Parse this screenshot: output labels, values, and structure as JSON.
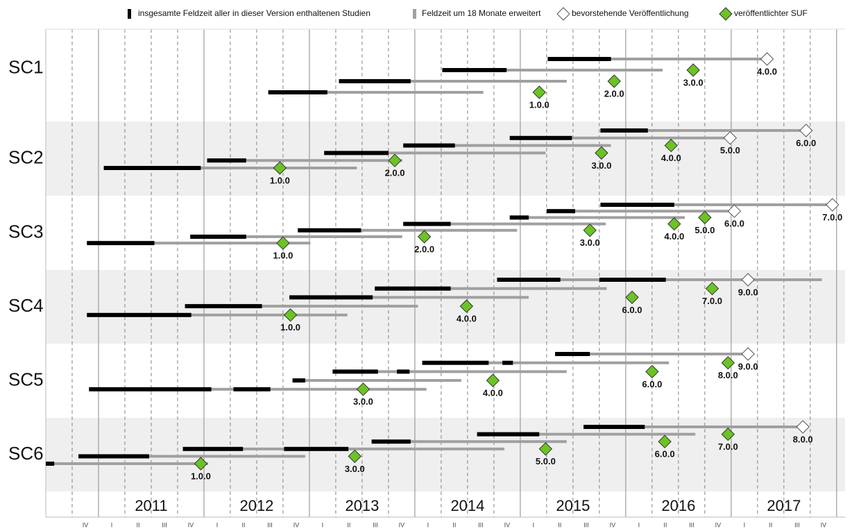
{
  "chart_data": {
    "type": "timeline",
    "legend": {
      "field": "insgesamte Feldzeit aller in dieser Version enthaltenen Studien",
      "extended": "Feldzeit um 18 Monate erweitert",
      "upcoming": "bevorstehende Veröffentlichung",
      "published": "veröffentlichter SUF"
    },
    "colors": {
      "field": "#000000",
      "extended": "#a0a0a0",
      "upcoming": "#ffffff",
      "published": "#6cc324",
      "band": "#efefef"
    },
    "xlim": [
      2010.5,
      2018.08
    ],
    "xticks": [
      2011,
      2012,
      2013,
      2014,
      2015,
      2016,
      2017,
      2018
    ],
    "minor_xticks": [
      2010.75,
      2011.25,
      2011.5,
      2011.75,
      2012.25,
      2012.5,
      2012.75,
      2013.25,
      2013.5,
      2013.75,
      2014.25,
      2014.5,
      2014.75,
      2015.25,
      2015.5,
      2015.75,
      2016.25,
      2016.5,
      2016.75,
      2017.25,
      2017.5,
      2017.75
    ],
    "year_labels": [
      "2011",
      "2012",
      "2013",
      "2014",
      "2015",
      "2016",
      "2017"
    ],
    "quarter_labels": [
      "IV",
      "I",
      "II",
      "III",
      "IV",
      "I",
      "II",
      "III",
      "IV",
      "I",
      "II",
      "III",
      "IV",
      "I",
      "II",
      "III",
      "IV",
      "I",
      "II",
      "III",
      "IV",
      "I",
      "II",
      "III",
      "IV",
      "I",
      "II",
      "III",
      "IV"
    ],
    "groups": [
      {
        "name": "SC1",
        "items": [
          {
            "version": "4.0.0",
            "fieldwork": [
              [
                2015.26,
                2015.86
              ]
            ],
            "extended_end": 2017.34,
            "release": 2017.34,
            "status": "upcoming"
          },
          {
            "version": "3.0.0",
            "fieldwork": [
              [
                2014.26,
                2014.87
              ]
            ],
            "extended_end": 2016.35,
            "release": 2016.64,
            "status": "published"
          },
          {
            "version": "2.0.0",
            "fieldwork": [
              [
                2013.28,
                2013.96
              ]
            ],
            "extended_end": 2015.44,
            "release": 2015.89,
            "status": "published"
          },
          {
            "version": "1.0.0",
            "fieldwork": [
              [
                2012.61,
                2013.17
              ]
            ],
            "extended_end": 2014.65,
            "release": 2015.18,
            "status": "published"
          }
        ]
      },
      {
        "name": "SC2",
        "items": [
          {
            "version": "6.0.0",
            "fieldwork": [
              [
                2015.76,
                2016.21
              ]
            ],
            "extended_end": 2017.71,
            "release": 2017.71,
            "status": "upcoming"
          },
          {
            "version": "5.0.0",
            "fieldwork": [
              [
                2014.9,
                2015.49
              ]
            ],
            "extended_end": 2016.99,
            "release": 2016.99,
            "status": "upcoming"
          },
          {
            "version": "4.0.0",
            "fieldwork": [
              [
                2013.89,
                2014.38
              ]
            ],
            "extended_end": 2015.86,
            "release": 2016.43,
            "status": "published"
          },
          {
            "version": "3.0.0",
            "fieldwork": [
              [
                2013.14,
                2013.75
              ]
            ],
            "extended_end": 2015.24,
            "release": 2015.77,
            "status": "published"
          },
          {
            "version": "2.0.0",
            "fieldwork": [
              [
                2012.03,
                2012.4
              ]
            ],
            "extended_end": 2013.88,
            "release": 2013.81,
            "status": "published"
          },
          {
            "version": "1.0.0",
            "fieldwork": [
              [
                2011.05,
                2011.97
              ]
            ],
            "extended_end": 2013.45,
            "release": 2012.72,
            "status": "published"
          }
        ]
      },
      {
        "name": "SC3",
        "items": [
          {
            "version": "7.0.0",
            "fieldwork": [
              [
                2015.76,
                2016.46
              ]
            ],
            "extended_end": 2017.96,
            "release": 2017.96,
            "status": "upcoming"
          },
          {
            "version": "6.0.0",
            "fieldwork": [
              [
                2015.25,
                2015.52
              ]
            ],
            "extended_end": 2017.03,
            "release": 2017.03,
            "status": "upcoming"
          },
          {
            "version": "5.0.0",
            "fieldwork": [
              [
                2014.9,
                2015.08
              ]
            ],
            "extended_end": 2016.56,
            "release": 2016.75,
            "status": "published"
          },
          {
            "version": "4.0.0",
            "fieldwork": [
              [
                2013.89,
                2014.34
              ]
            ],
            "extended_end": 2015.81,
            "release": 2016.46,
            "status": "published"
          },
          {
            "version": "3.0.0",
            "fieldwork": [
              [
                2012.89,
                2013.49
              ]
            ],
            "extended_end": 2014.97,
            "release": 2015.66,
            "status": "published"
          },
          {
            "version": "2.0.0",
            "fieldwork": [
              [
                2011.87,
                2012.4
              ]
            ],
            "extended_end": 2013.88,
            "release": 2014.09,
            "status": "published"
          },
          {
            "version": "1.0.0",
            "fieldwork": [
              [
                2010.89,
                2011.53
              ]
            ],
            "extended_end": 2013.01,
            "release": 2012.75,
            "status": "published"
          }
        ]
      },
      {
        "name": "SC4",
        "items": [
          {
            "version": "9.0.0",
            "fieldwork": [
              [
                2014.78,
                2015.38
              ],
              [
                2015.75,
                2016.38
              ]
            ],
            "extended_end": 2017.86,
            "release": 2017.16,
            "status": "upcoming"
          },
          {
            "version": "7.0.0",
            "fieldwork": [
              [
                2013.62,
                2014.34
              ]
            ],
            "extended_end": 2015.82,
            "release": 2016.82,
            "status": "published"
          },
          {
            "version": "6.0.0",
            "fieldwork": [
              [
                2012.81,
                2013.6
              ]
            ],
            "extended_end": 2015.08,
            "release": 2016.06,
            "status": "published"
          },
          {
            "version": "4.0.0",
            "fieldwork": [
              [
                2011.82,
                2012.55
              ]
            ],
            "extended_end": 2014.03,
            "release": 2014.49,
            "status": "published"
          },
          {
            "version": "1.0.0",
            "fieldwork": [
              [
                2010.89,
                2011.88
              ]
            ],
            "extended_end": 2013.36,
            "release": 2012.82,
            "status": "published"
          }
        ]
      },
      {
        "name": "SC5",
        "items": [
          {
            "version": "9.0.0",
            "fieldwork": [
              [
                2015.33,
                2015.66
              ]
            ],
            "extended_end": 2017.16,
            "release": 2017.16,
            "status": "upcoming"
          },
          {
            "version": "8.0.0",
            "fieldwork": [
              [
                2014.07,
                2014.7
              ],
              [
                2014.83,
                2014.93
              ]
            ],
            "extended_end": 2016.41,
            "release": 2016.97,
            "status": "published"
          },
          {
            "version": "6.0.0",
            "fieldwork": [
              [
                2013.22,
                2013.65
              ],
              [
                2013.83,
                2013.95
              ]
            ],
            "extended_end": 2015.44,
            "release": 2016.25,
            "status": "published"
          },
          {
            "version": "4.0.0",
            "fieldwork": [
              [
                2012.84,
                2012.96
              ]
            ],
            "extended_end": 2014.44,
            "release": 2014.74,
            "status": "published"
          },
          {
            "version": "3.0.0",
            "fieldwork": [
              [
                2010.91,
                2012.07
              ],
              [
                2012.28,
                2012.63
              ]
            ],
            "extended_end": 2014.11,
            "release": 2013.51,
            "status": "published"
          }
        ]
      },
      {
        "name": "SC6",
        "items": [
          {
            "version": "8.0.0",
            "fieldwork": [
              [
                2015.6,
                2016.18
              ]
            ],
            "extended_end": 2017.68,
            "release": 2017.68,
            "status": "upcoming"
          },
          {
            "version": "7.0.0",
            "fieldwork": [
              [
                2014.59,
                2015.18
              ]
            ],
            "extended_end": 2016.66,
            "release": 2016.97,
            "status": "published"
          },
          {
            "version": "6.0.0",
            "fieldwork": [
              [
                2013.59,
                2013.96
              ]
            ],
            "extended_end": 2015.44,
            "release": 2016.37,
            "status": "published"
          },
          {
            "version": "5.0.0",
            "fieldwork": [
              [
                2011.8,
                2012.37
              ],
              [
                2012.76,
                2013.37
              ]
            ],
            "extended_end": 2014.85,
            "release": 2015.24,
            "status": "published"
          },
          {
            "version": "3.0.0",
            "fieldwork": [
              [
                2010.81,
                2011.48
              ]
            ],
            "extended_end": 2012.96,
            "release": 2013.43,
            "status": "published"
          },
          {
            "version": "1.0.0",
            "fieldwork": [
              [
                2010.5,
                2010.58
              ]
            ],
            "extended_end": 2012.04,
            "release": 2011.97,
            "status": "published"
          }
        ]
      }
    ]
  }
}
